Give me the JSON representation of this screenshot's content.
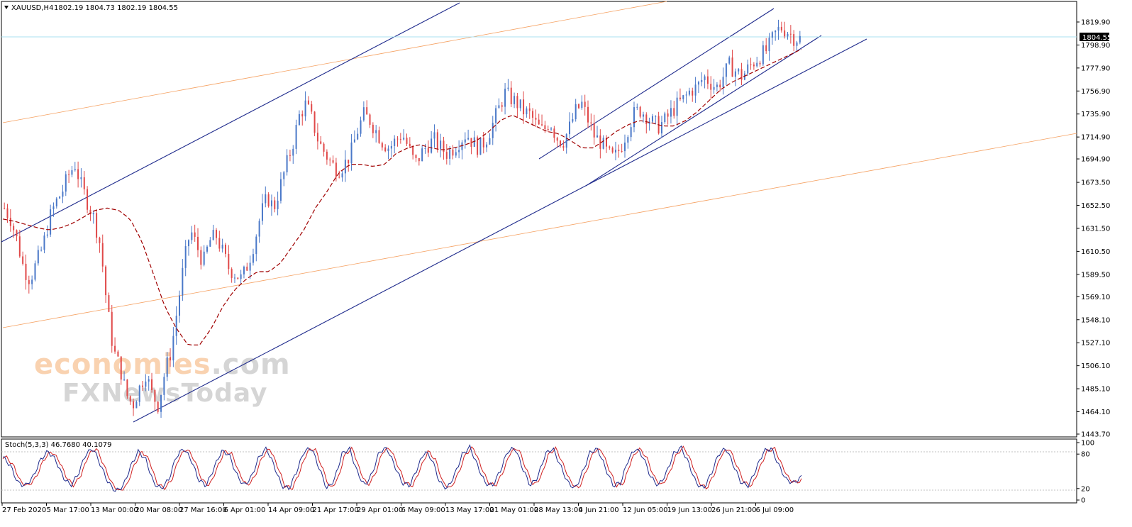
{
  "header": {
    "symbol": "XAUUSD,H4",
    "ohlc": "1802.19 1804.73 1802.19 1804.55",
    "menu_icon": "triangle-down-icon"
  },
  "price_badge": "1804.55",
  "stoch_label": "Stoch(5,3,3) 46.7680 40.1079",
  "watermark": {
    "line1_colored": "economies",
    "line1_rest": ".com",
    "line2": "FXNewsToday"
  },
  "colors": {
    "bull": "#4a78c8",
    "bear": "#e04848",
    "ma": "#a00000",
    "channel": "#1e2a8c",
    "fib": "#f5a060",
    "grid": "#c0c0c0",
    "stoch_main": "#1e2a8c",
    "stoch_signal": "#d02020",
    "price_line": "#a8e0f0"
  },
  "chart_data": {
    "type": "line",
    "symbol": "XAUUSD",
    "timeframe": "H4",
    "y_ticks": [
      "1819.90",
      "1798.90",
      "1777.90",
      "1756.90",
      "1735.90",
      "1714.90",
      "1694.90",
      "1673.50",
      "1652.50",
      "1631.50",
      "1610.50",
      "1589.50",
      "1569.10",
      "1548.10",
      "1527.10",
      "1506.10",
      "1485.10",
      "1464.10",
      "1443.70"
    ],
    "ylim": [
      1443.7,
      1819.9
    ],
    "x_ticks": [
      "27 Feb 2020",
      "5 Mar 17:00",
      "13 Mar 00:00",
      "20 Mar 08:00",
      "27 Mar 16:00",
      "6 Apr 01:00",
      "14 Apr 09:00",
      "21 Apr 17:00",
      "29 Apr 01:00",
      "6 May 09:00",
      "13 May 17:00",
      "21 May 01:00",
      "28 May 13:00",
      "4 Jun 21:00",
      "12 Jun 05:00",
      "19 Jun 13:00",
      "26 Jun 21:00",
      "6 Jul 09:00"
    ],
    "stoch_ticks": [
      "100",
      "80",
      "20",
      "0"
    ],
    "stoch_levels": [
      80,
      20
    ],
    "last_price": 1804.55,
    "close_series": [
      1650,
      1640,
      1620,
      1595,
      1585,
      1600,
      1615,
      1640,
      1655,
      1665,
      1680,
      1690,
      1670,
      1655,
      1640,
      1615,
      1560,
      1520,
      1505,
      1480,
      1470,
      1485,
      1500,
      1480,
      1470,
      1500,
      1520,
      1560,
      1600,
      1630,
      1615,
      1600,
      1620,
      1625,
      1610,
      1595,
      1590,
      1585,
      1600,
      1620,
      1645,
      1660,
      1650,
      1670,
      1690,
      1710,
      1735,
      1745,
      1730,
      1710,
      1700,
      1690,
      1685,
      1690,
      1700,
      1720,
      1735,
      1730,
      1720,
      1710,
      1705,
      1712,
      1718,
      1705,
      1690,
      1700,
      1708,
      1712,
      1705,
      1700,
      1705,
      1712,
      1718,
      1710,
      1705,
      1712,
      1725,
      1740,
      1755,
      1750,
      1745,
      1738,
      1735,
      1725,
      1720,
      1730,
      1715,
      1710,
      1722,
      1738,
      1745,
      1730,
      1715,
      1710,
      1700,
      1695,
      1705,
      1720,
      1735,
      1740,
      1735,
      1728,
      1725,
      1730,
      1738,
      1745,
      1750,
      1758,
      1760,
      1770,
      1765,
      1760,
      1770,
      1780,
      1775,
      1770,
      1778,
      1785,
      1790,
      1795,
      1808,
      1815,
      1812,
      1806,
      1804.55
    ],
    "ma_series": [
      1640,
      1638,
      1635,
      1632,
      1630,
      1632,
      1636,
      1642,
      1648,
      1650,
      1648,
      1640,
      1620,
      1590,
      1560,
      1540,
      1525,
      1525,
      1540,
      1560,
      1575,
      1585,
      1592,
      1592,
      1600,
      1615,
      1630,
      1650,
      1665,
      1682,
      1690,
      1690,
      1688,
      1690,
      1700,
      1705,
      1708,
      1705,
      1703,
      1705,
      1708,
      1712,
      1720,
      1730,
      1735,
      1730,
      1725,
      1720,
      1718,
      1712,
      1705,
      1705,
      1712,
      1720,
      1726,
      1730,
      1728,
      1725,
      1725,
      1730,
      1738,
      1748,
      1758,
      1765,
      1770,
      1775,
      1780,
      1785,
      1790,
      1795
    ],
    "stoch_main": [
      75,
      60,
      30,
      25,
      40,
      70,
      85,
      70,
      40,
      25,
      45,
      80,
      90,
      60,
      30,
      15,
      25,
      60,
      85,
      70,
      30,
      20,
      35,
      75,
      90,
      70,
      35,
      25,
      55,
      85,
      80,
      45,
      25,
      40,
      75,
      90,
      60,
      25,
      20,
      50,
      85,
      90,
      55,
      20,
      35,
      80,
      90,
      50,
      25,
      45,
      85,
      90,
      60,
      30,
      25,
      55,
      85,
      70,
      30,
      20,
      45,
      80,
      92,
      60,
      30,
      25,
      50,
      85,
      90,
      55,
      25,
      40,
      80,
      90,
      60,
      30,
      20,
      50,
      85,
      88,
      55,
      25,
      30,
      70,
      90,
      75,
      40,
      25,
      45,
      80,
      92,
      65,
      30,
      20,
      45,
      80,
      90,
      60,
      30,
      25,
      55,
      85,
      90,
      60,
      35,
      30,
      40
    ],
    "stoch_signal_offset": 1
  }
}
